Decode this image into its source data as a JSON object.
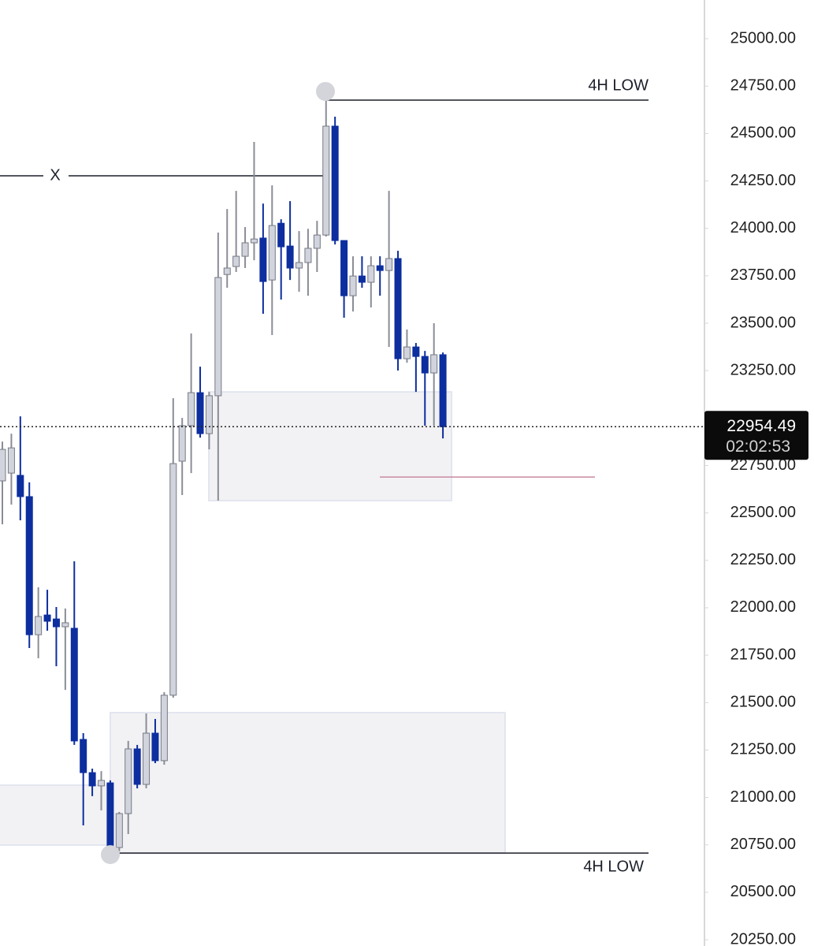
{
  "chart_data": {
    "type": "candlestick",
    "up_color": "#d1d4dc",
    "down_color": "#0d2e9e",
    "series": [
      {
        "open": [
          22669,
          22710,
          22698,
          22586,
          21858,
          21962,
          21941,
          21900,
          21892,
          21306,
          21131,
          21061,
          21077,
          20736,
          20915,
          21256,
          21069,
          21339,
          21194,
          21539,
          22773,
          22960,
          23134,
          22918,
          23118,
          23757,
          23799,
          23853,
          23924,
          23949,
          23728,
          24027,
          23907,
          23791,
          23820,
          23895,
          23965,
          24539,
          23936,
          23645,
          23749,
          23716,
          23803,
          23778,
          23841,
          23313,
          23375,
          23325,
          23238,
          23334
        ],
        "high": [
          22876,
          22918,
          23009,
          22661,
          22108,
          22095,
          22004,
          21996,
          22245,
          21339,
          21152,
          21139,
          21090,
          20924,
          21298,
          21277,
          21443,
          21414,
          21555,
          23105,
          23001,
          23446,
          23271,
          23138,
          23978,
          24102,
          24198,
          24007,
          24456,
          24131,
          24227,
          24048,
          24144,
          23986,
          23998,
          24040,
          24672,
          24589,
          23936,
          23853,
          23853,
          23853,
          23853,
          24198,
          23882,
          23467,
          23396,
          23354,
          23500,
          23346
        ],
        "low": [
          22440,
          22544,
          22461,
          21788,
          21734,
          21879,
          21692,
          21567,
          21277,
          20853,
          21007,
          20932,
          20707,
          20716,
          20807,
          21048,
          21048,
          21181,
          21173,
          21526,
          22594,
          22710,
          22897,
          22835,
          22565,
          23687,
          23770,
          23791,
          23832,
          23550,
          23438,
          23625,
          23728,
          23666,
          23645,
          23770,
          23957,
          23915,
          23529,
          23562,
          23687,
          23583,
          23645,
          23375,
          23251,
          23292,
          23138,
          22960,
          22960,
          22893
        ],
        "close": [
          22835,
          22843,
          22586,
          21858,
          21954,
          21929,
          21900,
          21921,
          21298,
          21131,
          21061,
          21090,
          20736,
          20915,
          21256,
          21069,
          21339,
          21194,
          21539,
          22760,
          22960,
          23134,
          22918,
          23118,
          23741,
          23791,
          23853,
          23924,
          23944,
          23720,
          24015,
          23903,
          23791,
          23820,
          23895,
          23965,
          24539,
          23936,
          23645,
          23749,
          23716,
          23803,
          23778,
          23841,
          23313,
          23375,
          23325,
          23238,
          23334,
          22954.49
        ]
      }
    ],
    "zones": [
      {
        "top": 23138,
        "bottom": 22565
      },
      {
        "top": 21447,
        "bottom": 20707
      },
      {
        "top": 21065,
        "bottom": 20749
      }
    ],
    "levels": [
      {
        "label": "4H LOW",
        "value": 24676
      },
      {
        "label": "X",
        "value": 24277
      },
      {
        "label": "4H LOW",
        "value": 20707
      },
      {
        "value": 22689
      }
    ],
    "price_label": {
      "value": 22954.49,
      "label": "22954.49",
      "timer": "02:02:53"
    },
    "ylim": [
      20217,
      25204
    ],
    "yticks": [
      {
        "value": 20250,
        "label": "20250.00"
      },
      {
        "value": 20500,
        "label": "20500.00"
      },
      {
        "value": 20750,
        "label": "20750.00"
      },
      {
        "value": 21000,
        "label": "21000.00"
      },
      {
        "value": 21250,
        "label": "21250.00"
      },
      {
        "value": 21500,
        "label": "21500.00"
      },
      {
        "value": 21750,
        "label": "21750.00"
      },
      {
        "value": 22000,
        "label": "22000.00"
      },
      {
        "value": 22250,
        "label": "22250.00"
      },
      {
        "value": 22500,
        "label": "22500.00"
      },
      {
        "value": 22750,
        "label": "22750.00"
      },
      {
        "value": 23000,
        "label": "23000.00"
      },
      {
        "value": 23250,
        "label": "23250.00"
      },
      {
        "value": 23500,
        "label": "23500.00"
      },
      {
        "value": 23750,
        "label": "23750.00"
      },
      {
        "value": 24000,
        "label": "24000.00"
      },
      {
        "value": 24250,
        "label": "24250.00"
      },
      {
        "value": 24500,
        "label": "24500.00"
      },
      {
        "value": 24750,
        "label": "24750.00"
      },
      {
        "value": 25000,
        "label": "25000.00"
      }
    ]
  }
}
